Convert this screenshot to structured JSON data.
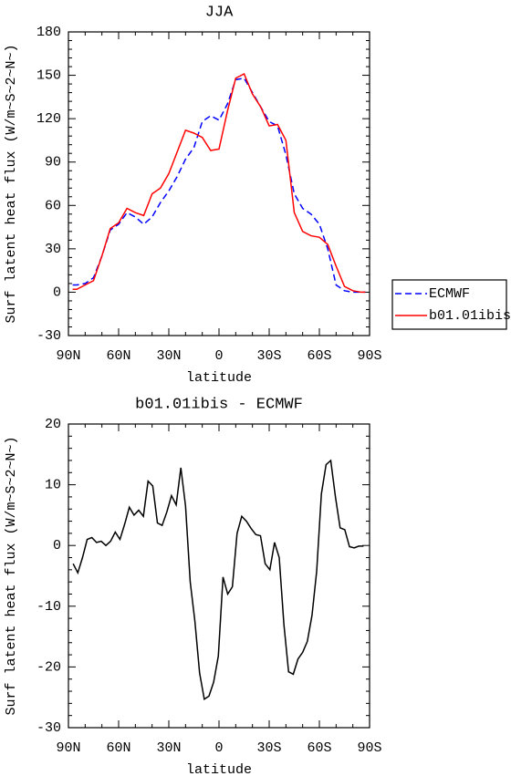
{
  "chart_data": [
    {
      "type": "line",
      "title": "JJA",
      "xlabel": "latitude",
      "ylabel": "Surf latent heat flux (W/m~S~2~N~)",
      "x": [
        87.5,
        85,
        80,
        75,
        70,
        65,
        60,
        55,
        50,
        45,
        40,
        35,
        30,
        25,
        20,
        15,
        10,
        5,
        0,
        -5,
        -10,
        -15,
        -20,
        -25,
        -30,
        -35,
        -40,
        -45,
        -50,
        -55,
        -60,
        -65,
        -70,
        -75,
        -80,
        -85,
        -87.5
      ],
      "series": [
        {
          "name": "ECMWF",
          "color": "#0000ff",
          "dash": "dashed",
          "values": [
            5,
            5,
            6,
            10,
            25,
            43,
            47,
            55,
            52,
            47,
            52,
            62,
            70,
            80,
            92,
            100,
            118,
            122,
            119,
            130,
            147,
            148,
            138,
            128,
            118,
            115,
            95,
            68,
            58,
            54,
            47,
            30,
            5,
            1,
            0,
            0,
            0
          ]
        },
        {
          "name": "b01.01ibis",
          "color": "#ff0000",
          "dash": "solid",
          "values": [
            2,
            2,
            5,
            8,
            25,
            44,
            48,
            58,
            55,
            53,
            68,
            72,
            82,
            97,
            112,
            110,
            107,
            98,
            99,
            125,
            148,
            151,
            137,
            128,
            115,
            116,
            105,
            55,
            42,
            39,
            38,
            33,
            18,
            4,
            1,
            0,
            0
          ]
        }
      ],
      "xlim": [
        90,
        -90
      ],
      "xticks": [
        {
          "value": 90,
          "label": "90N"
        },
        {
          "value": 60,
          "label": "60N"
        },
        {
          "value": 30,
          "label": "30N"
        },
        0,
        {
          "value": -30,
          "label": "30S"
        },
        {
          "value": -60,
          "label": "60S"
        },
        {
          "value": -90,
          "label": "90S"
        }
      ],
      "ylim": [
        -30,
        180
      ],
      "yticks": [
        -30,
        0,
        30,
        60,
        90,
        120,
        150,
        180
      ],
      "legend": "right"
    },
    {
      "type": "line",
      "title": "b01.01ibis - ECMWF",
      "xlabel": "latitude",
      "ylabel": "Surf latent heat flux (W/m~S~2~N~)",
      "x": [
        87.2,
        84.4,
        81.6,
        78.8,
        76,
        73.2,
        70.4,
        67.6,
        64.8,
        62,
        59.2,
        56.4,
        53.6,
        50.8,
        48,
        45.2,
        42.4,
        39.6,
        36.8,
        34,
        31.2,
        28.4,
        25.6,
        22.8,
        20,
        17.2,
        14.4,
        11.6,
        8.8,
        6,
        3.2,
        0.4,
        -2.4,
        -5.2,
        -8,
        -10.8,
        -13.6,
        -16.4,
        -19.2,
        -22,
        -24.8,
        -27.6,
        -30.4,
        -33.2,
        -36,
        -38.8,
        -41.6,
        -44.4,
        -47.2,
        -50,
        -52.8,
        -55.6,
        -58.4,
        -61.2,
        -64,
        -66.8,
        -69.6,
        -72.4,
        -75.2,
        -78,
        -80.8,
        -83.6,
        -86.4
      ],
      "series": [
        {
          "color": "#000000",
          "dash": "solid",
          "values": [
            -3,
            -4.5,
            -2,
            1,
            1.3,
            0.5,
            0.7,
            0,
            0.7,
            2.2,
            1,
            3.5,
            6.3,
            5,
            5.8,
            4.8,
            10.6,
            9.8,
            3.7,
            3.3,
            5.5,
            8.2,
            6.7,
            12.8,
            6.5,
            -6,
            -12.5,
            -21,
            -25.3,
            -24.8,
            -22.5,
            -18.2,
            -5.2,
            -8,
            -6.8,
            2,
            4.8,
            4,
            2.8,
            1.8,
            1.6,
            -3,
            -4,
            0.5,
            -2,
            -13,
            -20.8,
            -21.2,
            -18.7,
            -17.6,
            -15.8,
            -11.5,
            -4.2,
            8.5,
            13.3,
            14,
            8,
            2.9,
            2.6,
            -0.2,
            -0.4,
            -0.1,
            -0.1
          ]
        }
      ],
      "xlim": [
        90,
        -90
      ],
      "xticks": [
        {
          "value": 90,
          "label": "90N"
        },
        {
          "value": 60,
          "label": "60N"
        },
        {
          "value": 30,
          "label": "30N"
        },
        0,
        {
          "value": -30,
          "label": "30S"
        },
        {
          "value": -60,
          "label": "60S"
        },
        {
          "value": -90,
          "label": "90S"
        }
      ],
      "ylim": [
        -30,
        20
      ],
      "yticks": [
        -30,
        -20,
        -10,
        0,
        10,
        20
      ]
    }
  ]
}
